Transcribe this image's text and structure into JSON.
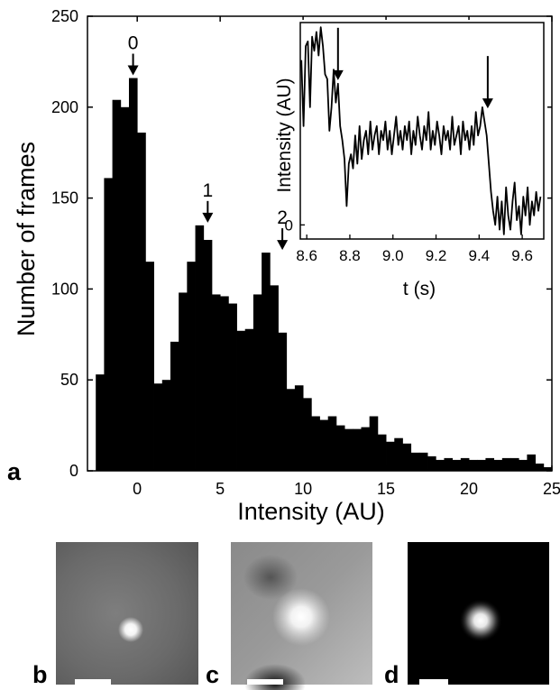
{
  "chart_data": [
    {
      "type": "bar",
      "panel": "a",
      "xlabel": "Intensity (AU)",
      "ylabel": "Number of frames",
      "xlim": [
        -3,
        25
      ],
      "ylim": [
        0,
        250
      ],
      "xticks": [
        "0",
        "5",
        "10",
        "15",
        "20",
        "25"
      ],
      "yticks": [
        "0",
        "50",
        "100",
        "150",
        "200",
        "250"
      ],
      "bin_width": 0.5,
      "x": [
        -2.5,
        -2.0,
        -1.5,
        -1.0,
        -0.5,
        0.0,
        0.5,
        1.0,
        1.5,
        2.0,
        2.5,
        3.0,
        3.5,
        4.0,
        4.5,
        5.0,
        5.5,
        6.0,
        6.5,
        7.0,
        7.5,
        8.0,
        8.5,
        9.0,
        9.5,
        10.0,
        10.5,
        11.0,
        11.5,
        12.0,
        12.5,
        13.0,
        13.5,
        14.0,
        14.5,
        15.0,
        15.5,
        16.0,
        16.5,
        17.0,
        17.5,
        18.0,
        18.5,
        19.0,
        19.5,
        20.0,
        20.5,
        21.0,
        21.5,
        22.0,
        22.5,
        23.0,
        23.5,
        24.0,
        24.5
      ],
      "values": [
        53,
        161,
        204,
        200,
        216,
        186,
        115,
        48,
        50,
        71,
        98,
        115,
        135,
        127,
        97,
        96,
        92,
        77,
        78,
        97,
        120,
        102,
        76,
        45,
        47,
        40,
        30,
        28,
        30,
        25,
        23,
        23,
        24,
        30,
        20,
        16,
        18,
        15,
        10,
        10,
        8,
        6,
        7,
        6,
        7,
        6,
        6,
        7,
        6,
        7,
        7,
        6,
        9,
        4,
        2
      ],
      "annotations": [
        {
          "label": "0",
          "x": -0.5,
          "y": 216
        },
        {
          "label": "1",
          "x": 4.0,
          "y": 135
        },
        {
          "label": "2",
          "x": 8.5,
          "y": 120
        }
      ]
    },
    {
      "type": "line",
      "panel": "inset",
      "xlabel": "t (s)",
      "ylabel": "Intensity (AU)",
      "xlim": [
        8.57,
        9.7
      ],
      "ylim": [
        -0.3,
        4.3
      ],
      "xticks": [
        "8.6",
        "8.8",
        "9.0",
        "9.2",
        "9.4",
        "9.6"
      ],
      "yticks": [
        "0"
      ],
      "x": [
        8.575,
        8.585,
        8.595,
        8.605,
        8.615,
        8.625,
        8.635,
        8.645,
        8.655,
        8.665,
        8.675,
        8.685,
        8.695,
        8.705,
        8.715,
        8.725,
        8.735,
        8.745,
        8.755,
        8.765,
        8.775,
        8.785,
        8.795,
        8.805,
        8.815,
        8.825,
        8.835,
        8.845,
        8.855,
        8.865,
        8.875,
        8.885,
        8.895,
        8.905,
        8.915,
        8.925,
        8.935,
        8.945,
        8.955,
        8.965,
        8.975,
        8.985,
        8.995,
        9.005,
        9.015,
        9.025,
        9.035,
        9.045,
        9.055,
        9.065,
        9.075,
        9.085,
        9.095,
        9.105,
        9.115,
        9.125,
        9.135,
        9.145,
        9.155,
        9.165,
        9.175,
        9.185,
        9.195,
        9.205,
        9.215,
        9.225,
        9.235,
        9.245,
        9.255,
        9.265,
        9.275,
        9.285,
        9.295,
        9.305,
        9.315,
        9.325,
        9.335,
        9.345,
        9.355,
        9.365,
        9.375,
        9.385,
        9.395,
        9.405,
        9.415,
        9.425,
        9.435,
        9.445,
        9.455,
        9.465,
        9.475,
        9.485,
        9.495,
        9.505,
        9.515,
        9.525,
        9.535,
        9.545,
        9.555,
        9.565,
        9.575,
        9.585,
        9.595,
        9.605,
        9.615,
        9.625,
        9.635,
        9.645,
        9.655,
        9.665,
        9.675,
        9.685
      ],
      "values": [
        3.5,
        2.1,
        3.8,
        3.9,
        2.5,
        4.0,
        3.7,
        4.1,
        3.6,
        4.2,
        3.8,
        3.2,
        3.1,
        2.0,
        2.5,
        3.3,
        2.6,
        3.0,
        2.1,
        1.8,
        1.4,
        0.4,
        1.3,
        1.5,
        1.2,
        1.9,
        1.3,
        2.1,
        1.4,
        1.8,
        2.0,
        1.5,
        2.2,
        1.6,
        1.9,
        2.1,
        1.5,
        2.0,
        1.8,
        2.2,
        1.6,
        2.0,
        1.5,
        1.9,
        2.3,
        1.7,
        2.0,
        1.6,
        2.1,
        1.8,
        2.2,
        1.5,
        2.0,
        1.7,
        2.3,
        1.9,
        1.6,
        2.1,
        1.8,
        2.4,
        1.6,
        2.0,
        1.7,
        2.2,
        1.9,
        1.5,
        2.1,
        1.8,
        2.0,
        1.6,
        2.3,
        1.7,
        1.9,
        2.1,
        1.5,
        2.2,
        1.8,
        2.0,
        1.6,
        2.1,
        1.7,
        2.4,
        1.9,
        2.1,
        2.5,
        2.2,
        1.9,
        1.3,
        0.7,
        0.3,
        0.0,
        0.6,
        -0.1,
        0.5,
        -0.2,
        0.8,
        0.2,
        -0.1,
        0.5,
        0.9,
        0.1,
        0.4,
        -0.2,
        0.6,
        0.2,
        0.8,
        0.0,
        0.5,
        0.2,
        0.7,
        0.3,
        0.6
      ],
      "arrows": [
        {
          "x": 8.745,
          "y": 3.0
        },
        {
          "x": 9.44,
          "y": 2.4
        }
      ]
    },
    {
      "type": "image",
      "panel": "b",
      "description_letter": "b"
    },
    {
      "type": "image",
      "panel": "c",
      "description_letter": "c"
    },
    {
      "type": "image",
      "panel": "d",
      "description_letter": "d"
    }
  ],
  "panels": {
    "a": "a",
    "b": "b",
    "c": "c",
    "d": "d"
  },
  "colors": {
    "bars": "#000000",
    "axes": "#000000",
    "background": "#ffffff",
    "scale_bar": "#ffffff"
  }
}
